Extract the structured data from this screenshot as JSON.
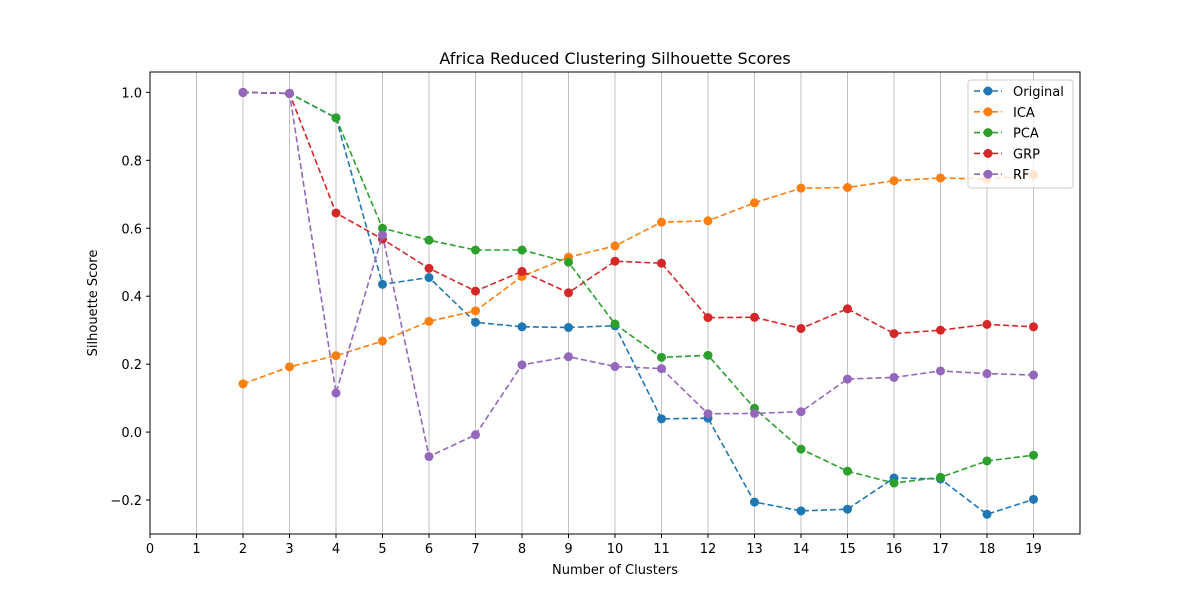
{
  "chart_data": {
    "type": "line",
    "title": "Africa Reduced Clustering Silhouette Scores",
    "xlabel": "Number of Clusters",
    "ylabel": "Silhouette Score",
    "xlim": [
      0,
      20
    ],
    "ylim": [
      -0.3,
      1.06
    ],
    "xticks": [
      0,
      1,
      2,
      3,
      4,
      5,
      6,
      7,
      8,
      9,
      10,
      11,
      12,
      13,
      14,
      15,
      16,
      17,
      18,
      19
    ],
    "yticks": [
      -0.2,
      0.0,
      0.2,
      0.4,
      0.6,
      0.8,
      1.0
    ],
    "ytick_labels": [
      "−0.2",
      "0.0",
      "0.2",
      "0.4",
      "0.6",
      "0.8",
      "1.0"
    ],
    "grid": "vertical",
    "legend_position": "top-right",
    "line_style": "dashed",
    "marker": "circle",
    "x": [
      2,
      3,
      4,
      5,
      6,
      7,
      8,
      9,
      10,
      11,
      12,
      13,
      14,
      15,
      16,
      17,
      18,
      19
    ],
    "series": [
      {
        "name": "Original",
        "color": "#1f77b4",
        "values": [
          1.0,
          0.997,
          0.925,
          0.435,
          0.455,
          0.323,
          0.31,
          0.308,
          0.313,
          0.039,
          0.041,
          -0.206,
          -0.232,
          -0.227,
          -0.135,
          -0.138,
          -0.242,
          -0.198
        ]
      },
      {
        "name": "ICA",
        "color": "#ff7f0e",
        "values": [
          0.142,
          0.192,
          0.225,
          0.268,
          0.326,
          0.357,
          0.458,
          0.515,
          0.548,
          0.618,
          0.622,
          0.675,
          0.718,
          0.72,
          0.74,
          0.748,
          0.745,
          0.757
        ]
      },
      {
        "name": "PCA",
        "color": "#2ca02c",
        "values": [
          1.0,
          0.997,
          0.925,
          0.6,
          0.565,
          0.536,
          0.536,
          0.5,
          0.318,
          0.22,
          0.226,
          0.07,
          -0.05,
          -0.115,
          -0.15,
          -0.133,
          -0.085,
          -0.068
        ]
      },
      {
        "name": "GRP",
        "color": "#d62728",
        "values": [
          1.0,
          0.997,
          0.645,
          0.568,
          0.482,
          0.415,
          0.473,
          0.41,
          0.503,
          0.497,
          0.337,
          0.338,
          0.305,
          0.363,
          0.29,
          0.3,
          0.317,
          0.31
        ]
      },
      {
        "name": "RF",
        "color": "#9467bd",
        "values": [
          1.0,
          0.997,
          0.115,
          0.58,
          -0.072,
          -0.008,
          0.198,
          0.222,
          0.193,
          0.187,
          0.054,
          0.055,
          0.06,
          0.156,
          0.161,
          0.18,
          0.172,
          0.168
        ]
      }
    ]
  }
}
